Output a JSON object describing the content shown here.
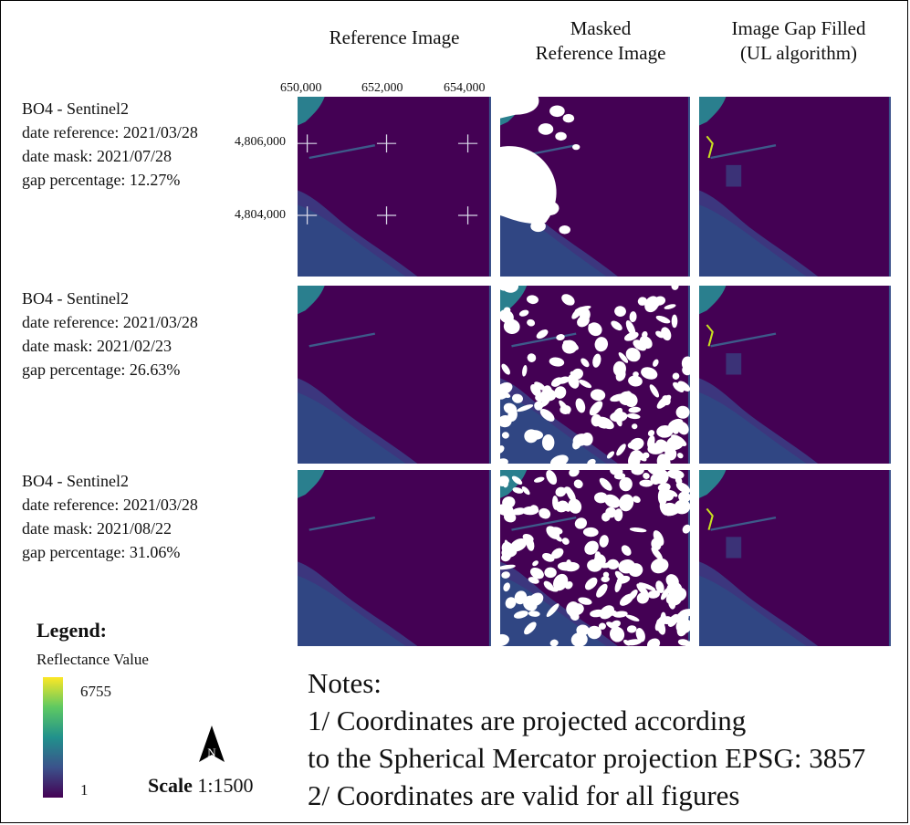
{
  "columns": [
    "Reference Image",
    "Masked Reference Image",
    "Image Gap Filled (UL algorithm)"
  ],
  "column_title_lines": [
    [
      "Reference Image"
    ],
    [
      "Masked",
      "Reference Image"
    ],
    [
      "Image Gap Filled",
      "(UL algorithm)"
    ]
  ],
  "x_ticks": [
    "650,000",
    "652,000",
    "654,000"
  ],
  "y_ticks": [
    "4,806,000",
    "4,804,000"
  ],
  "rows": [
    {
      "site": "BO4 - Sentinel2",
      "date_reference": "date reference: 2021/03/28",
      "date_mask": "date mask: 2021/07/28",
      "gap": "gap percentage: 12.27%"
    },
    {
      "site": "BO4 - Sentinel2",
      "date_reference": "date reference: 2021/03/28",
      "date_mask": "date mask: 2021/02/23",
      "gap": "gap percentage: 26.63%"
    },
    {
      "site": "BO4 - Sentinel2",
      "date_reference": "date reference: 2021/03/28",
      "date_mask": "date mask: 2021/08/22",
      "gap": "gap percentage: 31.06%"
    }
  ],
  "legend": {
    "title": "Legend:",
    "subtitle": "Reflectance Value",
    "max": "6755",
    "min": "1",
    "colors": [
      "#440154",
      "#3b528b",
      "#21918c",
      "#5ec962",
      "#fde725"
    ]
  },
  "north_label": "N",
  "scale": {
    "label": "Scale",
    "value": "1:1500"
  },
  "notes": [
    "Notes:",
    "1/ Coordinates are projected according",
    "to the Spherical Mercator projection EPSG: 3857",
    "2/ Coordinates are valid for all figures"
  ],
  "colors": {
    "water": "#440154",
    "shore": "#3d5a8a",
    "mask": "#ffffff"
  }
}
